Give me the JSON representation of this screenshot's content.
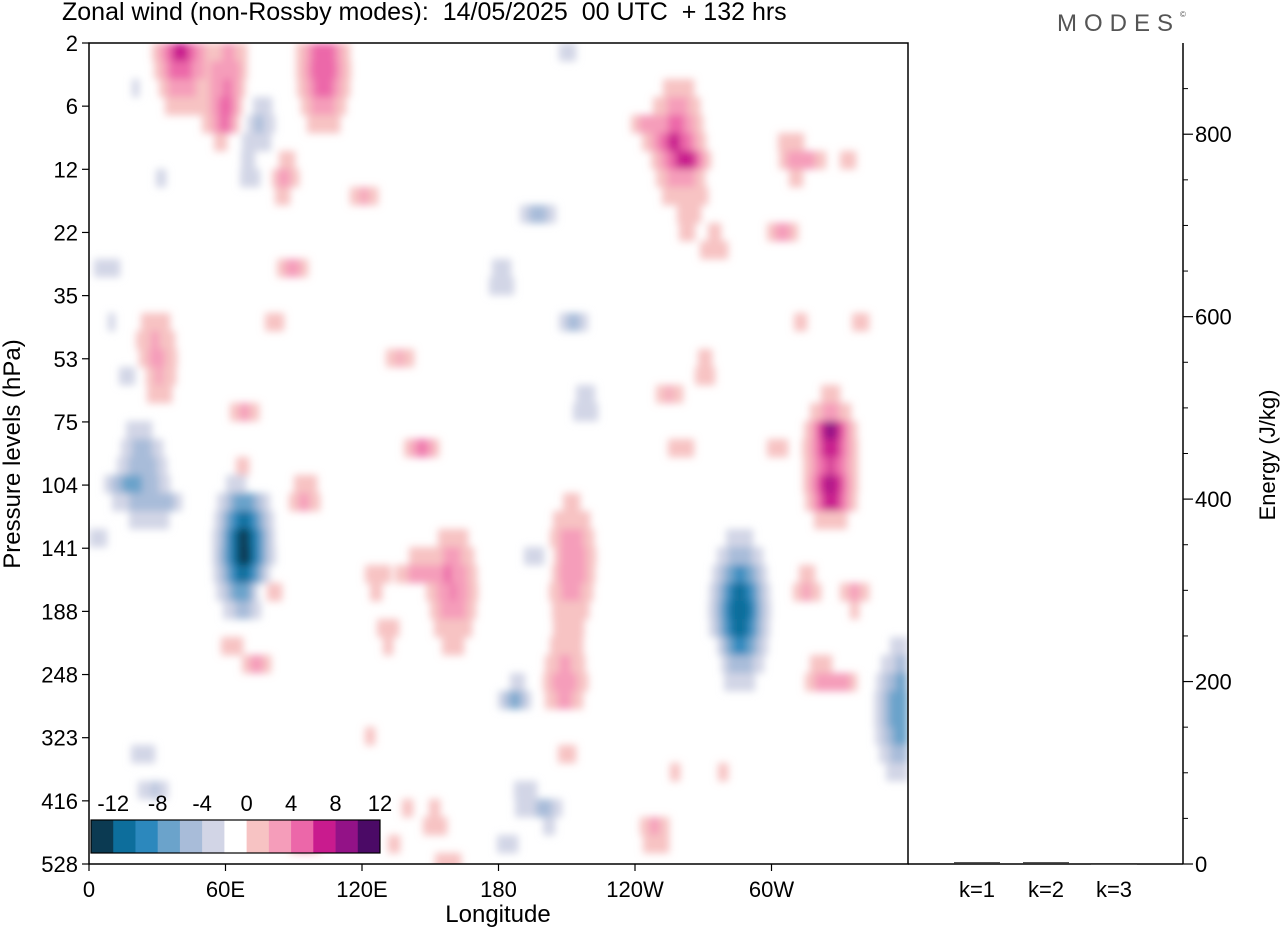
{
  "title": "Zonal wind (non-Rossby modes):  14/05/2025  00 UTC  + 132 hrs",
  "brand": "MODES",
  "brand_mark": "©",
  "colors": {
    "neg": [
      "#0b3a52",
      "#0d6e9c",
      "#2c88bd",
      "#6ba3cb",
      "#a8bcd9",
      "#d2d5e6"
    ],
    "zero": "#ffffff",
    "pos": [
      "#f7c3c3",
      "#f59dba",
      "#ec67a9",
      "#c91b8e",
      "#931287",
      "#4b0a66"
    ]
  },
  "chart_data": [
    {
      "type": "heatmap",
      "title": "Zonal wind (non-Rossby modes):  14/05/2025  00 UTC  + 132 hrs",
      "xlabel": "Longitude",
      "ylabel": "Pressure levels (hPa)",
      "x_ticks": [
        "0",
        "60E",
        "120E",
        "180",
        "120W",
        "60W"
      ],
      "x_tick_degrees": [
        0,
        60,
        120,
        180,
        240,
        300
      ],
      "xlim": [
        0,
        360
      ],
      "y_ticks": [
        "2",
        "6",
        "12",
        "22",
        "35",
        "53",
        "75",
        "104",
        "141",
        "188",
        "248",
        "323",
        "416",
        "528"
      ],
      "y_scale": "model levels (top to bottom)",
      "colorbar": {
        "tick_labels": [
          "-12",
          "-8",
          "-4",
          "0",
          "4",
          "8",
          "12"
        ],
        "boundaries": [
          -14,
          -12,
          -10,
          -8,
          -6,
          -4,
          -2,
          2,
          4,
          6,
          8,
          10,
          12,
          14
        ],
        "placement": "bottom-left"
      },
      "features": [
        {
          "lon": 68,
          "level": 141,
          "value": -13
        },
        {
          "lon": 286,
          "level": 188,
          "value": -12
        },
        {
          "lon": 357,
          "level": 290,
          "value": -8
        },
        {
          "lon": 160,
          "level": 170,
          "value": 6
        },
        {
          "lon": 212,
          "level": 150,
          "value": 6
        },
        {
          "lon": 209,
          "level": 280,
          "value": 6
        },
        {
          "lon": 326,
          "level": 92,
          "value": 8
        },
        {
          "lon": 40,
          "level": 2,
          "value": 9
        },
        {
          "lon": 103,
          "level": 3,
          "value": 8
        },
        {
          "lon": 63,
          "level": 5,
          "value": 8
        },
        {
          "lon": 259,
          "level": 9,
          "value": 7
        },
        {
          "lon": 29,
          "level": 55,
          "value": 5
        },
        {
          "lon": 24,
          "level": 95,
          "value": -6
        },
        {
          "lon": 71,
          "level": 8,
          "value": -7
        }
      ],
      "grid": false
    },
    {
      "type": "bar",
      "categories": [
        "k=1",
        "k=2",
        "k=3"
      ],
      "values": [
        2,
        2,
        1
      ],
      "ylabel": "Energy (J/kg)",
      "y_ticks": [
        "0",
        "200",
        "400",
        "600",
        "800"
      ],
      "ylim": [
        0,
        900
      ]
    }
  ]
}
